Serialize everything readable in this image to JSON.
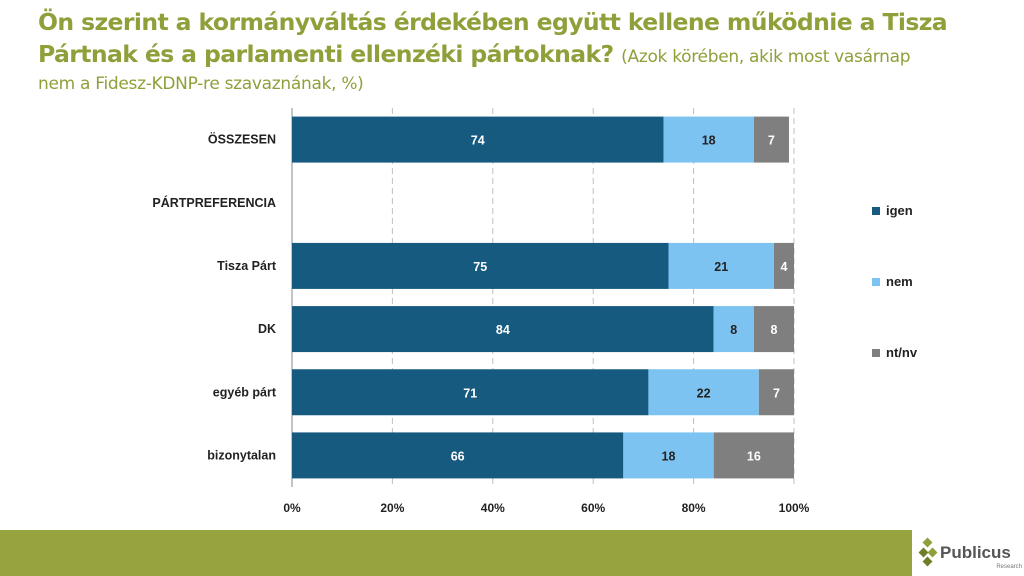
{
  "title": {
    "main": "Ön szerint a kormányváltás érdekében együtt kellene működnie a Tisza Pártnak és a parlamenti ellenzéki pártoknak?",
    "sub_a": "(Azok körében, akik most vasárnap",
    "sub_b": "nem a Fidesz-KDNP-re szavaznának, %)"
  },
  "colors": {
    "igen": "#165A80",
    "nem": "#7DC3F2",
    "ntnv": "#7F7F7F",
    "accent": "#8FA03A"
  },
  "chart_data": {
    "type": "bar",
    "orientation": "horizontal",
    "stacked": true,
    "categories": [
      "ÖSSZESEN",
      "PÁRTPREFERENCIA",
      "Tisza Párt",
      "DK",
      "egyéb párt",
      "bizonytalan"
    ],
    "series": [
      {
        "name": "igen",
        "values": [
          74,
          null,
          75,
          84,
          71,
          66
        ]
      },
      {
        "name": "nem",
        "values": [
          18,
          null,
          21,
          8,
          22,
          18
        ]
      },
      {
        "name": "nt/nv",
        "values": [
          7,
          null,
          4,
          8,
          7,
          16
        ]
      }
    ],
    "xlim": [
      0,
      100
    ],
    "xticks": [
      "0%",
      "20%",
      "40%",
      "60%",
      "80%",
      "100%"
    ],
    "legend": "right",
    "grid": true
  },
  "logo": {
    "name": "Publicus",
    "sub": "Research"
  }
}
